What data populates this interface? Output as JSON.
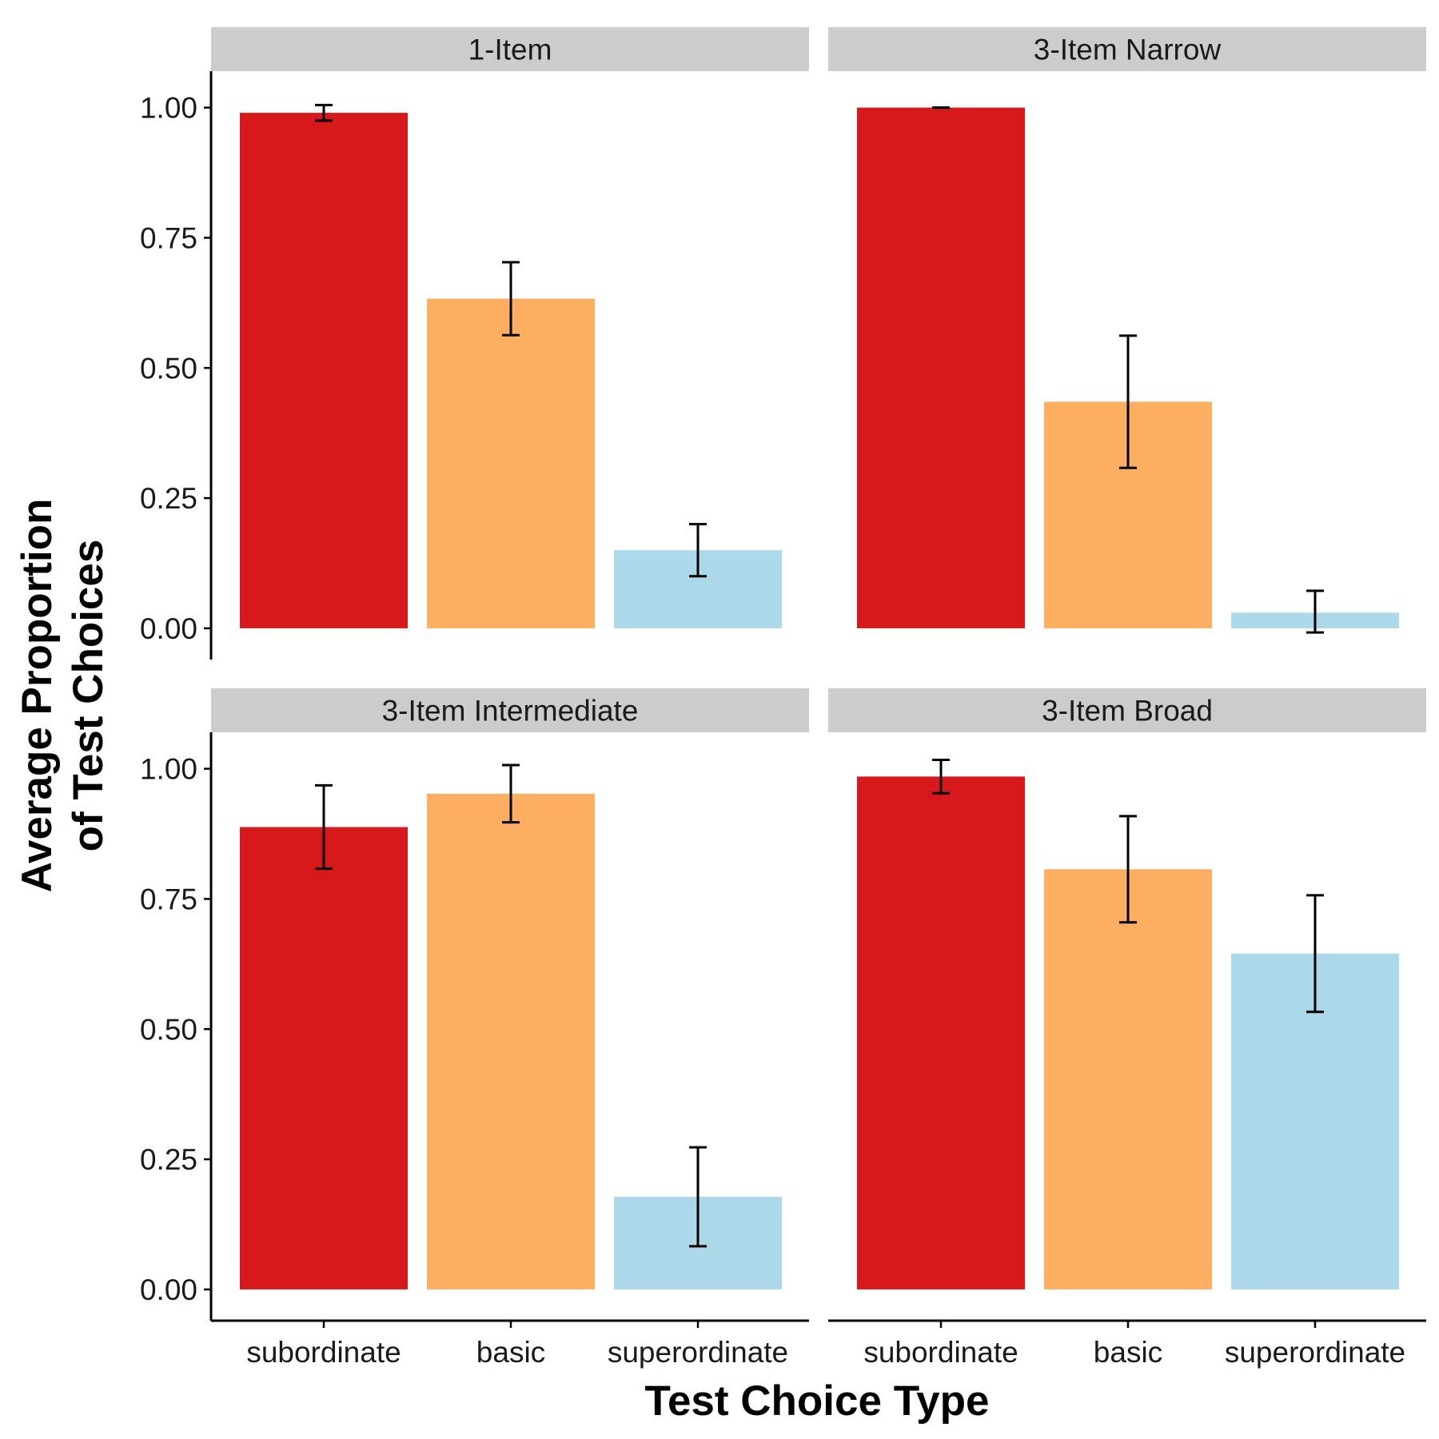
{
  "chart_data": {
    "type": "bar",
    "xlabel": "Test Choice Type",
    "ylabel": [
      "Average Proportion",
      "of Test Choices"
    ],
    "ylim": [
      -0.06,
      1.07
    ],
    "yticks": [
      "0.00",
      "0.25",
      "0.50",
      "0.75",
      "1.00"
    ],
    "categories": [
      "subordinate",
      "basic",
      "superordinate"
    ],
    "colors": [
      "#d7191c",
      "#fdae61",
      "#abd9e9"
    ],
    "strip_color": "#cccccc",
    "legend": "none",
    "grid": false,
    "facet_layout": "2x2",
    "panels": [
      {
        "title": "1-Item",
        "values": [
          0.99,
          0.633,
          0.15
        ],
        "error_low": [
          0.975,
          0.563,
          0.1
        ],
        "error_high": [
          1.005,
          0.703,
          0.2
        ]
      },
      {
        "title": "3-Item Narrow",
        "values": [
          1.0,
          0.435,
          0.03
        ],
        "error_low": [
          1.0,
          0.308,
          -0.008
        ],
        "error_high": [
          1.0,
          0.562,
          0.072
        ]
      },
      {
        "title": "3-Item Intermediate",
        "values": [
          0.888,
          0.952,
          0.178
        ],
        "error_low": [
          0.808,
          0.897,
          0.083
        ],
        "error_high": [
          0.968,
          1.007,
          0.273
        ]
      },
      {
        "title": "3-Item Broad",
        "values": [
          0.985,
          0.807,
          0.645
        ],
        "error_low": [
          0.953,
          0.705,
          0.533
        ],
        "error_high": [
          1.017,
          0.909,
          0.757
        ]
      }
    ]
  }
}
